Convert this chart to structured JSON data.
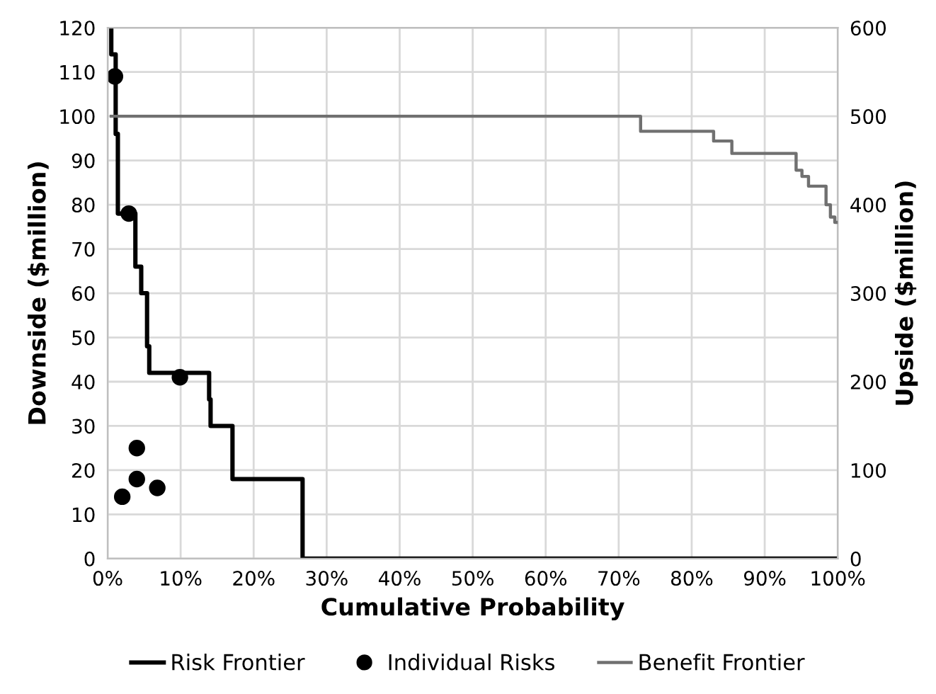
{
  "chart_data": {
    "type": "line",
    "xlabel": "Cumulative Probability",
    "ylabel": "Downside ($million)",
    "y2label": "Upside ($million)",
    "xlim": [
      0,
      100
    ],
    "xticks": [
      {
        "value": 0,
        "label": "0%"
      },
      {
        "value": 10,
        "label": "10%"
      },
      {
        "value": 20,
        "label": "20%"
      },
      {
        "value": 30,
        "label": "30%"
      },
      {
        "value": 40,
        "label": "40%"
      },
      {
        "value": 50,
        "label": "50%"
      },
      {
        "value": 60,
        "label": "60%"
      },
      {
        "value": 70,
        "label": "70%"
      },
      {
        "value": 80,
        "label": "80%"
      },
      {
        "value": 90,
        "label": "90%"
      },
      {
        "value": 100,
        "label": "100%"
      }
    ],
    "ylim": [
      0,
      120
    ],
    "yticks": [
      0,
      10,
      20,
      30,
      40,
      50,
      60,
      70,
      80,
      90,
      100,
      110,
      120
    ],
    "y2lim": [
      0,
      600
    ],
    "y2ticks": [
      0,
      100,
      200,
      300,
      400,
      500,
      600
    ],
    "grid": true,
    "legend": "bottom",
    "series": [
      {
        "name": "Risk Frontier",
        "color": "#000000",
        "marker": "none",
        "x": [
          0.5,
          0.5,
          1.1,
          1.1,
          1.4,
          1.4,
          3.8,
          3.8,
          4.6,
          4.6,
          5.4,
          5.4,
          5.7,
          5.7,
          13.9,
          13.9,
          14.1,
          14.1,
          17.1,
          17.1,
          26.7,
          26.7,
          100
        ],
        "values": [
          120,
          114,
          114,
          96,
          96,
          78,
          78,
          66,
          66,
          60,
          60,
          48,
          48,
          42,
          42,
          36,
          36,
          30,
          30,
          18,
          18,
          0,
          0
        ]
      },
      {
        "name": "Individual Risks",
        "type": "scatter",
        "color": "#000000",
        "marker": "circle",
        "x": [
          1.0,
          2.9,
          9.9,
          4.0,
          4.0,
          2.0,
          6.8
        ],
        "values": [
          109,
          78,
          41,
          25,
          18,
          14,
          16
        ]
      },
      {
        "name": "Benefit Frontier",
        "axis": "y2",
        "color": "#707070",
        "marker": "none",
        "x": [
          0.5,
          73,
          73,
          83,
          83,
          85.5,
          85.5,
          94.3,
          94.3,
          95.1,
          95.1,
          96,
          96,
          98.4,
          98.4,
          99,
          99,
          99.6,
          99.6,
          100
        ],
        "values": [
          500,
          500,
          483,
          483,
          472,
          472,
          458,
          458,
          439,
          439,
          432,
          432,
          421,
          421,
          400,
          400,
          386,
          386,
          380,
          380
        ]
      }
    ]
  }
}
